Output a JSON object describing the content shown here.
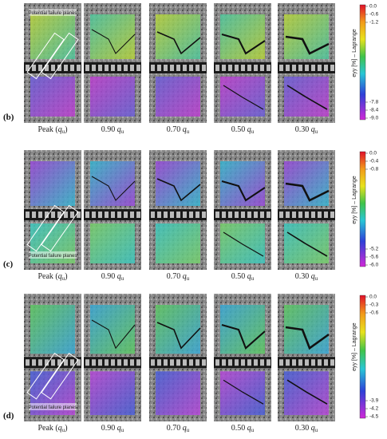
{
  "panels": [
    {
      "label": "(b)",
      "annotation": "Potential failure planes",
      "colorbar": {
        "title": "eyy [%] – Lagrange",
        "ticks": [
          "0.0",
          "-0.6",
          "-1.2",
          "-7.8",
          "-8.4",
          "-9.0"
        ]
      }
    },
    {
      "label": "(c)",
      "annotation": "Potential failure planes",
      "colorbar": {
        "title": "eyy [%] – Lagrange",
        "ticks": [
          "0.0",
          "-0.4",
          "-0.8",
          "-5.2",
          "-5.6",
          "-6.0"
        ]
      }
    },
    {
      "label": "(d)",
      "annotation": "Potential failure planes",
      "colorbar": {
        "title": "eyy [%] – Lagrange",
        "ticks": [
          "0.0",
          "-0.3",
          "-0.6",
          "-3.9",
          "-4.2",
          "-4.5"
        ]
      }
    }
  ],
  "captions": [
    {
      "text": "Peak (",
      "var": "q",
      "sub": "u",
      "close": ")"
    },
    {
      "text": "0.90 ",
      "var": "q",
      "sub": "u"
    },
    {
      "text": "0.70 ",
      "var": "q",
      "sub": "u"
    },
    {
      "text": "0.50 ",
      "var": "q",
      "sub": "u"
    },
    {
      "text": "0.30 ",
      "var": "q",
      "sub": "u"
    }
  ]
}
